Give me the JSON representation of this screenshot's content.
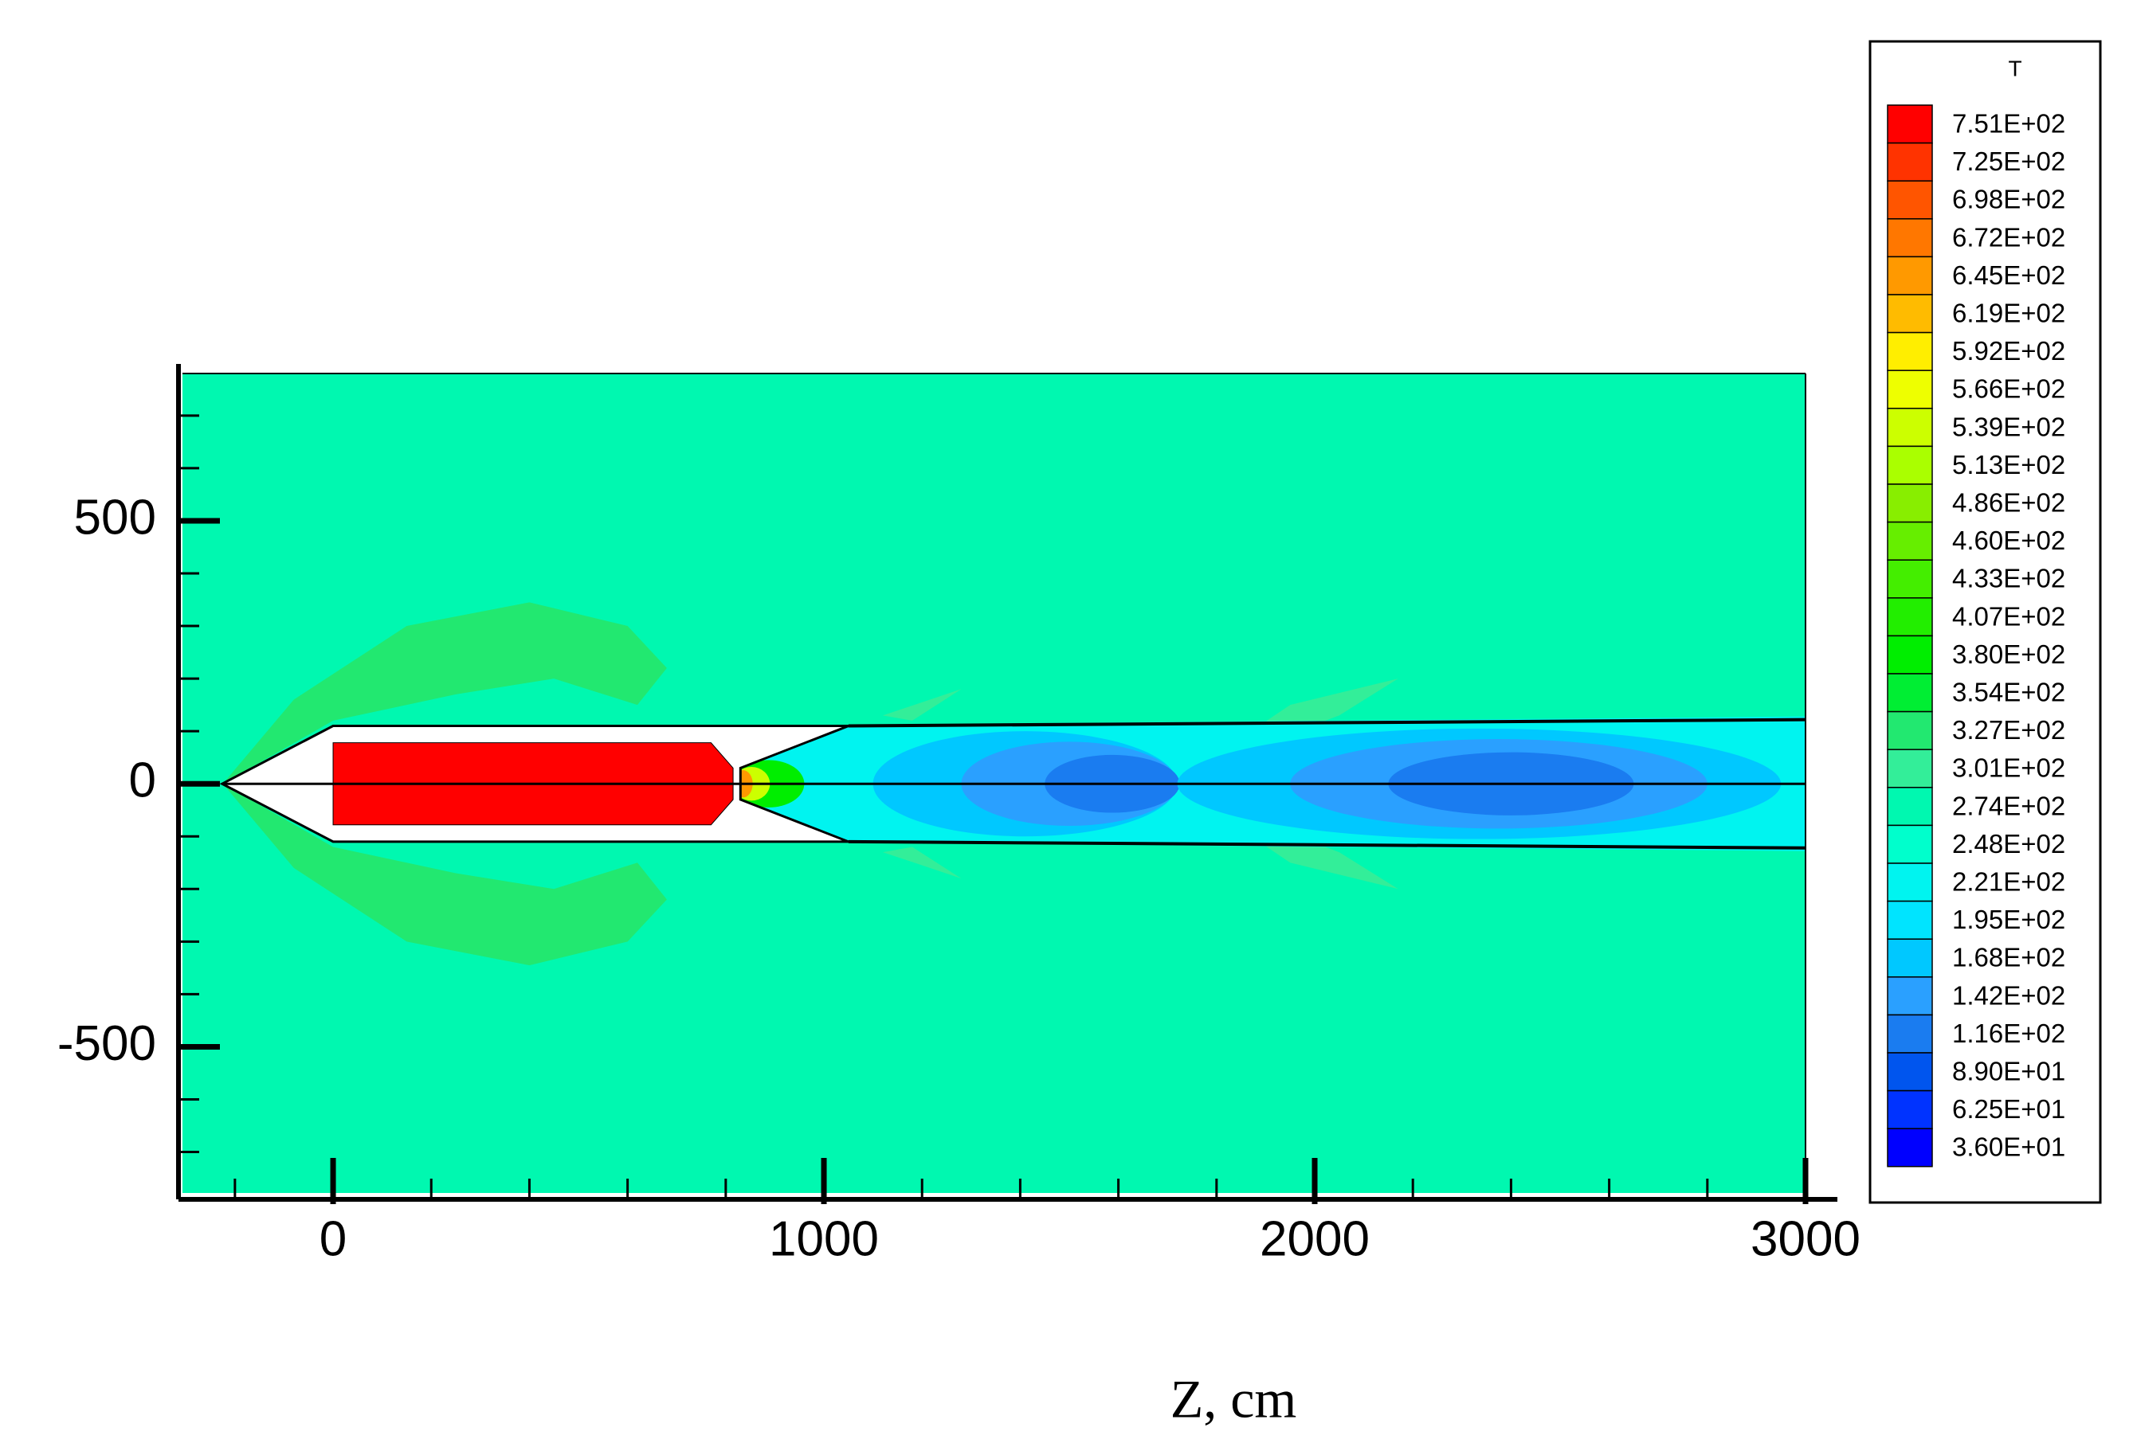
{
  "chart_data": {
    "type": "contour",
    "legend_title": "T",
    "xlabel": "Z, cm",
    "xlim": [
      -315,
      3000
    ],
    "ylim": [
      -790,
      780
    ],
    "xticks": [
      0,
      1000,
      2000,
      3000
    ],
    "yticks": [
      -500,
      0,
      500
    ],
    "xminorticks": [
      -200,
      200,
      400,
      600,
      800,
      1200,
      1400,
      1600,
      1800,
      2200,
      2400,
      2600,
      2800
    ],
    "yminorticks": [
      -700,
      -600,
      -400,
      -300,
      -200,
      -100,
      100,
      200,
      300,
      400,
      600,
      700
    ],
    "levels": [
      {
        "value": 751,
        "label": "7.51E+02"
      },
      {
        "value": 725,
        "label": "7.25E+02"
      },
      {
        "value": 698,
        "label": "6.98E+02"
      },
      {
        "value": 672,
        "label": "6.72E+02"
      },
      {
        "value": 645,
        "label": "6.45E+02"
      },
      {
        "value": 619,
        "label": "6.19E+02"
      },
      {
        "value": 592,
        "label": "5.92E+02"
      },
      {
        "value": 566,
        "label": "5.66E+02"
      },
      {
        "value": 539,
        "label": "5.39E+02"
      },
      {
        "value": 513,
        "label": "5.13E+02"
      },
      {
        "value": 486,
        "label": "4.86E+02"
      },
      {
        "value": 460,
        "label": "4.60E+02"
      },
      {
        "value": 433,
        "label": "4.33E+02"
      },
      {
        "value": 407,
        "label": "4.07E+02"
      },
      {
        "value": 380,
        "label": "3.80E+02"
      },
      {
        "value": 354,
        "label": "3.54E+02"
      },
      {
        "value": 327,
        "label": "3.27E+02"
      },
      {
        "value": 301,
        "label": "3.01E+02"
      },
      {
        "value": 274,
        "label": "2.74E+02"
      },
      {
        "value": 248,
        "label": "2.48E+02"
      },
      {
        "value": 221,
        "label": "2.21E+02"
      },
      {
        "value": 195,
        "label": "1.95E+02"
      },
      {
        "value": 168,
        "label": "1.68E+02"
      },
      {
        "value": 142,
        "label": "1.42E+02"
      },
      {
        "value": 116,
        "label": "1.16E+02"
      },
      {
        "value": 89,
        "label": "8.90E+01"
      },
      {
        "value": 62.5,
        "label": "6.25E+01"
      },
      {
        "value": 36,
        "label": "3.60E+01"
      }
    ],
    "colors": [
      "#ff0000",
      "#ff3300",
      "#ff5500",
      "#ff7700",
      "#ff9900",
      "#ffbb00",
      "#ffee00",
      "#eeff00",
      "#ccff00",
      "#aaff00",
      "#88ee00",
      "#66ee00",
      "#44ee00",
      "#22ee00",
      "#00ee00",
      "#00ee33",
      "#22e870",
      "#33ee99",
      "#00f8b0",
      "#00ffcc",
      "#00f4f0",
      "#00e4ff",
      "#00c8ff",
      "#2aa0ff",
      "#1a7cf0",
      "#0055ee",
      "#0033ff",
      "#0000ff"
    ]
  }
}
